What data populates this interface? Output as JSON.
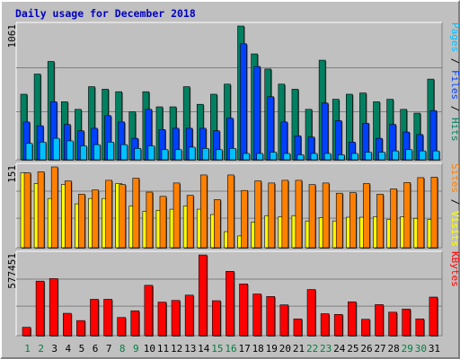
{
  "title": "Daily usage for December 2018",
  "colors": {
    "pages": "#00c0ff",
    "files": "#0040ff",
    "hits": "#008060",
    "sites": "#ff8000",
    "visits": "#ffff00",
    "kbytes": "#ff0000",
    "weekend_label": "#008040",
    "weekday_label": "#000000",
    "background": "#c0c0c0"
  },
  "chart_data": [
    {
      "type": "bar",
      "panel": "hits-files-pages",
      "ymax_label": "1061",
      "ymax": 1061,
      "categories": [
        "1",
        "2",
        "3",
        "4",
        "5",
        "6",
        "7",
        "8",
        "9",
        "10",
        "11",
        "12",
        "13",
        "14",
        "15",
        "16",
        "17",
        "18",
        "19",
        "20",
        "21",
        "22",
        "23",
        "24",
        "25",
        "26",
        "27",
        "28",
        "29",
        "30",
        "31"
      ],
      "weekend_days": [
        "1",
        "2",
        "8",
        "9",
        "15",
        "16",
        "22",
        "23",
        "29",
        "30"
      ],
      "right_labels": [
        {
          "text": "Pages",
          "color": "#00c0ff"
        },
        {
          "text": " / ",
          "color": "#000000"
        },
        {
          "text": "Files",
          "color": "#0040ff"
        },
        {
          "text": " / ",
          "color": "#000000"
        },
        {
          "text": "Hits",
          "color": "#008060"
        }
      ],
      "series": [
        {
          "name": "Hits",
          "color": "#008060",
          "values": [
            520,
            680,
            780,
            460,
            400,
            580,
            560,
            540,
            380,
            540,
            420,
            420,
            580,
            440,
            520,
            600,
            1061,
            840,
            720,
            600,
            560,
            400,
            790,
            480,
            520,
            530,
            460,
            480,
            400,
            370,
            640
          ]
        },
        {
          "name": "Files",
          "color": "#0040ff",
          "values": [
            300,
            270,
            460,
            280,
            230,
            250,
            350,
            300,
            170,
            400,
            240,
            250,
            250,
            250,
            230,
            330,
            920,
            740,
            500,
            300,
            190,
            180,
            450,
            310,
            140,
            290,
            170,
            280,
            220,
            200,
            390
          ]
        },
        {
          "name": "Pages",
          "color": "#00c0ff",
          "values": [
            130,
            140,
            170,
            150,
            110,
            120,
            140,
            120,
            90,
            110,
            80,
            80,
            100,
            90,
            80,
            90,
            50,
            50,
            60,
            50,
            40,
            50,
            50,
            40,
            50,
            60,
            60,
            70,
            80,
            70,
            70
          ]
        }
      ]
    },
    {
      "type": "bar",
      "panel": "sites-visits",
      "ymax_label": "151",
      "ymax": 151,
      "categories": [
        "1",
        "2",
        "3",
        "4",
        "5",
        "6",
        "7",
        "8",
        "9",
        "10",
        "11",
        "12",
        "13",
        "14",
        "15",
        "16",
        "17",
        "18",
        "19",
        "20",
        "21",
        "22",
        "23",
        "24",
        "25",
        "26",
        "27",
        "28",
        "29",
        "30",
        "31"
      ],
      "right_labels": [
        {
          "text": "Sites",
          "color": "#ff8000"
        },
        {
          "text": " / ",
          "color": "#000000"
        },
        {
          "text": "Visits",
          "color": "#ffff00"
        }
      ],
      "series": [
        {
          "name": "Visits",
          "color": "#ffff00",
          "values": [
            140,
            120,
            92,
            118,
            82,
            92,
            92,
            120,
            78,
            68,
            70,
            72,
            78,
            72,
            62,
            30,
            22,
            48,
            60,
            58,
            60,
            50,
            56,
            50,
            57,
            57,
            58,
            53,
            58,
            55,
            53
          ]
        },
        {
          "name": "Sites",
          "color": "#ff8000",
          "values": [
            140,
            142,
            151,
            125,
            100,
            108,
            126,
            118,
            130,
            104,
            96,
            121,
            98,
            136,
            90,
            136,
            107,
            125,
            121,
            126,
            126,
            118,
            121,
            102,
            103,
            120,
            100,
            110,
            122,
            131,
            132
          ]
        }
      ]
    },
    {
      "type": "bar",
      "panel": "kbytes",
      "ymax_label": "577451",
      "ymax": 577451,
      "categories": [
        "1",
        "2",
        "3",
        "4",
        "5",
        "6",
        "7",
        "8",
        "9",
        "10",
        "11",
        "12",
        "13",
        "14",
        "15",
        "16",
        "17",
        "18",
        "19",
        "20",
        "21",
        "22",
        "23",
        "24",
        "25",
        "26",
        "27",
        "28",
        "29",
        "30",
        "31"
      ],
      "right_labels": [
        {
          "text": "KBytes",
          "color": "#ff0000"
        }
      ],
      "series": [
        {
          "name": "KBytes",
          "color": "#ff0000",
          "values": [
            60000,
            390000,
            408000,
            160000,
            108000,
            260000,
            260000,
            130000,
            178000,
            360000,
            240000,
            252000,
            290000,
            577000,
            250000,
            460000,
            370000,
            298000,
            280000,
            220000,
            120000,
            330000,
            157000,
            152000,
            242000,
            117000,
            222000,
            168000,
            190000,
            120000,
            276000
          ]
        }
      ]
    }
  ]
}
